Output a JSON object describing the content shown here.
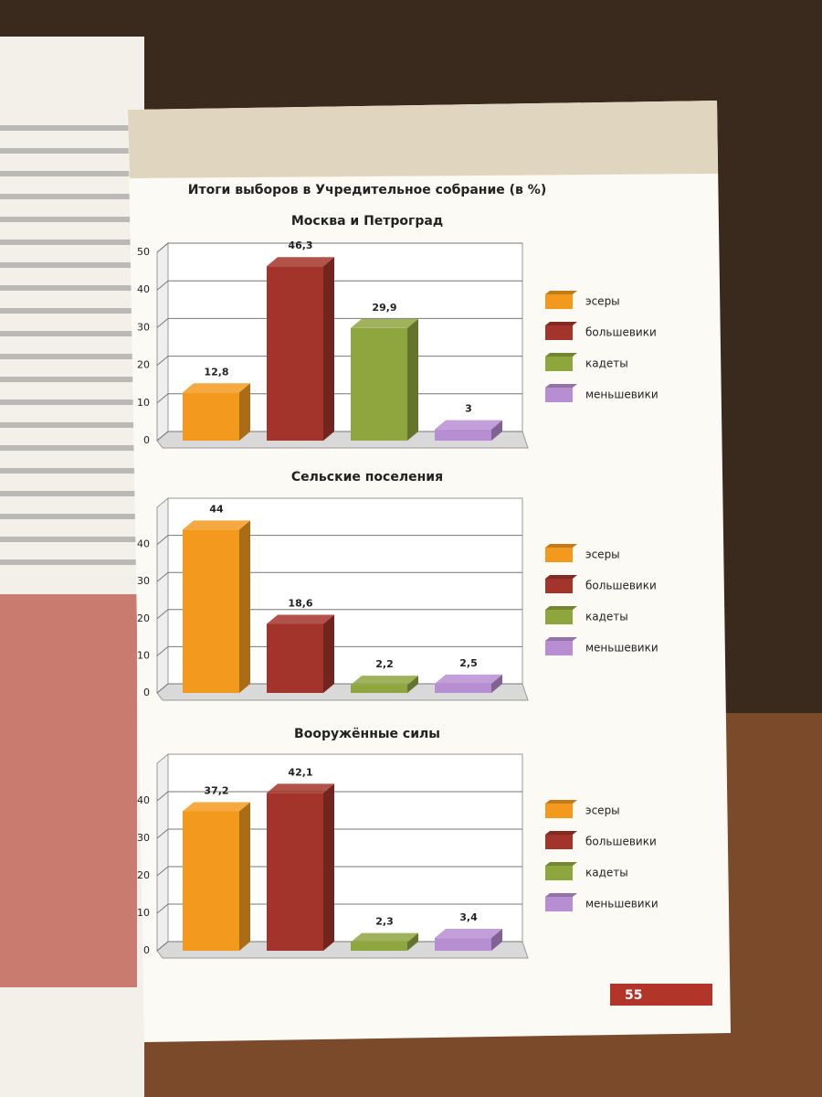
{
  "title": "Итоги выборов в Учредительное собрание (в %)",
  "page_number": "55",
  "chart_data": [
    {
      "type": "bar",
      "title": "Москва и Петроград",
      "categories": [
        "эсеры",
        "большевики",
        "кадеты",
        "меньшевики"
      ],
      "values": [
        12.8,
        46.3,
        29.9,
        3
      ],
      "value_labels": [
        "12,8",
        "46,3",
        "29,9",
        "3"
      ],
      "colors": [
        "#f39a1e",
        "#a3342b",
        "#8fa63f",
        "#b88ed2"
      ],
      "ylim": [
        0,
        50
      ],
      "yticks": [
        0,
        10,
        20,
        30,
        40,
        50
      ],
      "grid": true,
      "legend": "right"
    },
    {
      "type": "bar",
      "title": "Сельские поселения",
      "categories": [
        "эсеры",
        "большевики",
        "кадеты",
        "меньшевики"
      ],
      "values": [
        44,
        18.6,
        2.2,
        2.5
      ],
      "value_labels": [
        "44",
        "18,6",
        "2,2",
        "2,5"
      ],
      "colors": [
        "#f39a1e",
        "#a3342b",
        "#8fa63f",
        "#b88ed2"
      ],
      "ylim": [
        0,
        50
      ],
      "yticks": [
        0,
        10,
        20,
        30,
        40
      ],
      "grid": true,
      "legend": "right"
    },
    {
      "type": "bar",
      "title": "Вооружённые силы",
      "categories": [
        "эсеры",
        "большевики",
        "кадеты",
        "меньшевики"
      ],
      "values": [
        37.2,
        42.1,
        2.3,
        3.4
      ],
      "value_labels": [
        "37,2",
        "42,1",
        "2,3",
        "3,4"
      ],
      "colors": [
        "#f39a1e",
        "#a3342b",
        "#8fa63f",
        "#b88ed2"
      ],
      "ylim": [
        0,
        50
      ],
      "yticks": [
        0,
        10,
        20,
        30,
        40
      ],
      "grid": true,
      "legend": "right"
    }
  ]
}
